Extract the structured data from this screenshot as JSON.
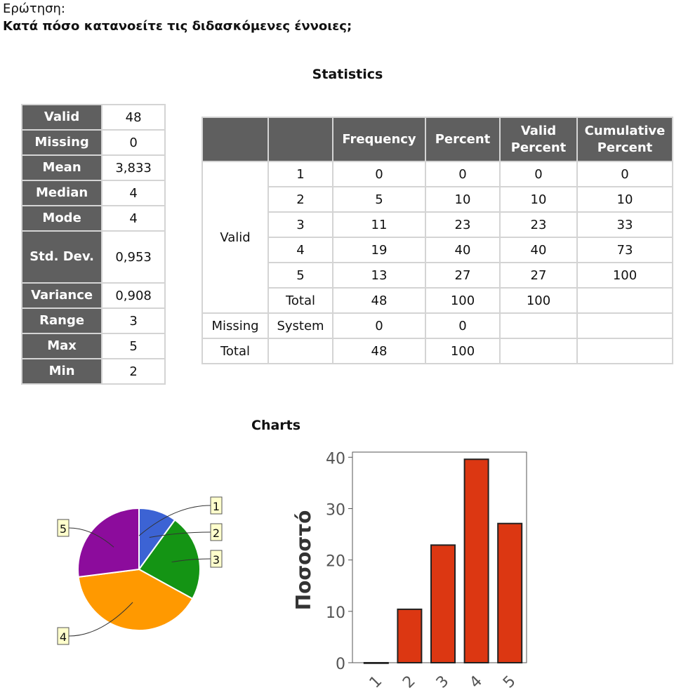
{
  "question": {
    "label": "Ερώτηση:",
    "text": "Κατά πόσο κατανοείτε τις διδασκόμενες έννοιες;"
  },
  "statistics_heading": "Statistics",
  "statistics": [
    {
      "key": "Valid",
      "value": "48"
    },
    {
      "key": "Missing",
      "value": "0"
    },
    {
      "key": "Mean",
      "value": "3,833"
    },
    {
      "key": "Median",
      "value": "4"
    },
    {
      "key": "Mode",
      "value": "4"
    },
    {
      "key": "Std. Dev.",
      "value": "0,953"
    },
    {
      "key": "Variance",
      "value": "0,908"
    },
    {
      "key": "Range",
      "value": "3"
    },
    {
      "key": "Max",
      "value": "5"
    },
    {
      "key": "Min",
      "value": "2"
    }
  ],
  "frequency_table": {
    "headers": [
      "",
      "",
      "Frequency",
      "Percent",
      "Valid Percent",
      "Cumulative Percent"
    ],
    "group_valid": "Valid",
    "rows_valid": [
      [
        "1",
        "0",
        "0",
        "0",
        "0"
      ],
      [
        "2",
        "5",
        "10",
        "10",
        "10"
      ],
      [
        "3",
        "11",
        "23",
        "23",
        "33"
      ],
      [
        "4",
        "19",
        "40",
        "40",
        "73"
      ],
      [
        "5",
        "13",
        "27",
        "27",
        "100"
      ],
      [
        "Total",
        "48",
        "100",
        "100",
        ""
      ]
    ],
    "row_missing": [
      "Missing",
      "System",
      "0",
      "0",
      "",
      ""
    ],
    "row_total": [
      "Total",
      "",
      "48",
      "100",
      "",
      ""
    ]
  },
  "charts_heading": "Charts",
  "chart_data": [
    {
      "type": "pie",
      "categories": [
        "1",
        "2",
        "3",
        "4",
        "5"
      ],
      "values": [
        0,
        10,
        23,
        40,
        27
      ],
      "colors": [
        "#888888",
        "#3c63d4",
        "#149414",
        "#ff9900",
        "#8c0c9c"
      ]
    },
    {
      "type": "bar",
      "categories": [
        "1",
        "2",
        "3",
        "4",
        "5"
      ],
      "values": [
        0,
        10.4,
        22.9,
        39.6,
        27.1
      ],
      "ylabel": "Ποσοστό",
      "ylim": [
        0,
        41
      ],
      "yticks": [
        "0",
        "10",
        "20",
        "30",
        "40"
      ],
      "bar_color": "#dc3712",
      "grid": false
    }
  ]
}
